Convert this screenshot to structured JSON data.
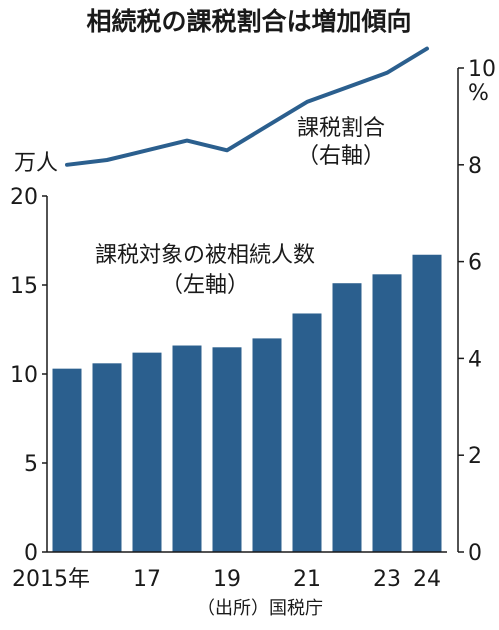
{
  "title": "相続税の課税割合は増加傾向",
  "source": "（出所）国税庁",
  "colors": {
    "bar": "#2b5f8e",
    "line": "#2b5f8e",
    "text": "#1a1a1a",
    "axis": "#1a1a1a"
  },
  "chart_data": {
    "type": "bar+line",
    "x": [
      2015,
      2016,
      2017,
      2018,
      2019,
      2020,
      2021,
      2022,
      2023,
      2024
    ],
    "x_tick_labels": [
      "2015年",
      "",
      "17",
      "",
      "19",
      "",
      "21",
      "",
      "23",
      "24"
    ],
    "series": [
      {
        "name": "課税対象の被相続人数",
        "axis_note": "（左軸）",
        "type": "bar",
        "unit": "万人",
        "values": [
          10.3,
          10.6,
          11.2,
          11.6,
          11.5,
          12.0,
          13.4,
          15.1,
          15.6,
          16.7
        ]
      },
      {
        "name": "課税割合",
        "axis_note": "（右軸）",
        "type": "line",
        "unit": "%",
        "values": [
          8.0,
          8.1,
          8.3,
          8.5,
          8.3,
          8.8,
          9.3,
          9.6,
          9.9,
          10.4
        ]
      }
    ],
    "left_axis": {
      "unit": "万人",
      "ylim": [
        0,
        20
      ],
      "ticks": [
        0,
        5,
        10,
        15,
        20
      ]
    },
    "right_axis": {
      "unit": "%",
      "ylim": [
        0,
        10
      ],
      "ticks": [
        0,
        2,
        4,
        6,
        8,
        10
      ]
    },
    "grid": false,
    "legend": "inline labels"
  }
}
